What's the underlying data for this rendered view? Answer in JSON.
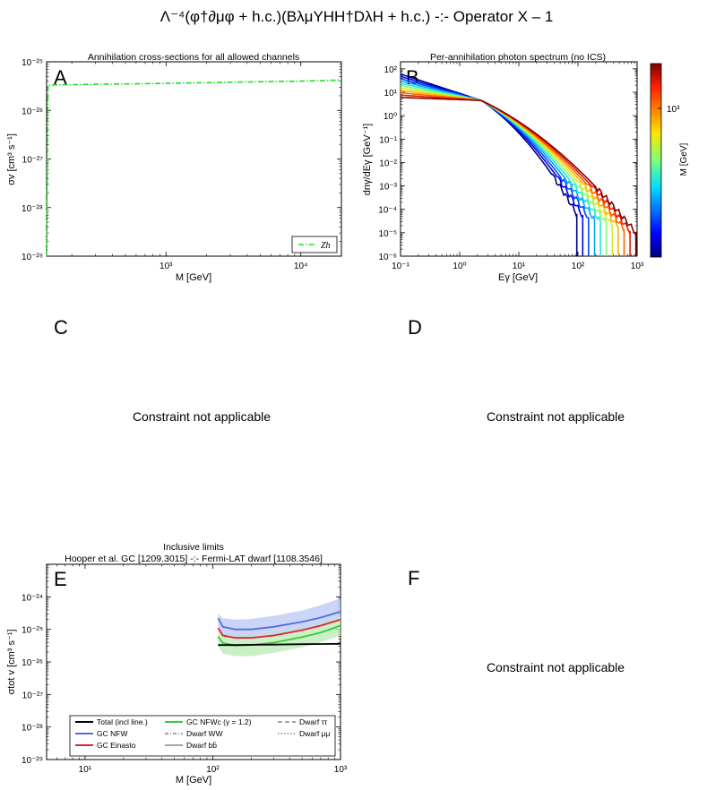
{
  "figure_title": "Λ⁻⁴(φ†∂μφ + h.c.)(BλμYHH†DλH + h.c.) -:- Operator X – 1",
  "na_text": "Constraint not applicable",
  "colors": {
    "zh_line": "#22dd22",
    "total": "#000000",
    "nfw": "#4f6fe0",
    "einasto": "#e0203a",
    "nfwc": "#33cc33",
    "nfw_band": "#b9c7f2",
    "nfwc_band": "#b9ebb4",
    "gray_dwarf": "#888888"
  },
  "chart_data": [
    {
      "panel": "A",
      "type": "line",
      "title": "Annihilation cross-sections for all allowed channels",
      "xlabel": "M [GeV]",
      "ylabel": "σv [cm³ s⁻¹]",
      "xscale": "log",
      "yscale": "log",
      "xlim": [
        130,
        20000
      ],
      "ylim": [
        1e-29,
        1e-25
      ],
      "x_ticks": [
        "10³",
        "10⁴"
      ],
      "y_ticks": [
        "10⁻²⁹",
        "10⁻²⁸",
        "10⁻²⁷",
        "10⁻²⁶",
        "10⁻²⁵"
      ],
      "legend": {
        "placement": "bottom-right",
        "entries": [
          "Zh"
        ]
      },
      "series": [
        {
          "name": "Zh",
          "style": "dash-dot",
          "x": [
            130,
            133,
            150,
            300,
            1000,
            3000,
            10000,
            20000
          ],
          "y": [
            1e-29,
            3.3e-26,
            3.35e-26,
            3.45e-26,
            3.6e-26,
            3.8e-26,
            4e-26,
            4.2e-26
          ]
        }
      ]
    },
    {
      "panel": "B",
      "type": "line",
      "title": "Per-annihilation photon spectrum (no ICS)",
      "xlabel": "Eγ [GeV]",
      "ylabel": "dnγ/dEγ [GeV⁻¹]",
      "xscale": "log",
      "yscale": "log",
      "xlim": [
        0.1,
        1000
      ],
      "ylim": [
        1e-06,
        200
      ],
      "x_ticks": [
        "10⁻¹",
        "10⁰",
        "10¹",
        "10²",
        "10³"
      ],
      "y_ticks": [
        "10⁻⁶",
        "10⁻⁵",
        "10⁻⁴",
        "10⁻³",
        "10⁻²",
        "10⁻¹",
        "10⁰",
        "10¹",
        "10²"
      ],
      "colorbar": {
        "label": "M [GeV]",
        "tick": "10³",
        "mass_range": [
          100,
          1000
        ]
      },
      "masses": [
        100,
        126,
        158,
        200,
        251,
        316,
        398,
        501,
        631,
        794,
        1000
      ],
      "spectrum_model": {
        "low_E_value_at_M100": 60,
        "low_E_value_at_M1000": 6,
        "pivot_E": 2.3,
        "pivot_value": 4.5
      }
    },
    {
      "panel": "E",
      "type": "line",
      "title": "Inclusive limits",
      "subtitle": "Hooper et al. GC [1209.3015] -:- Fermi-LAT dwarf [1108.3546]",
      "xlabel": "M [GeV]",
      "ylabel": "σtot v [cm³ s⁻¹]",
      "xscale": "log",
      "yscale": "log",
      "xlim": [
        5,
        1000
      ],
      "ylim": [
        1e-29,
        1e-23
      ],
      "x_ticks": [
        "10¹",
        "10²",
        "10³"
      ],
      "y_ticks": [
        "10⁻²⁹",
        "10⁻²⁸",
        "10⁻²⁷",
        "10⁻²⁶",
        "10⁻²⁵",
        "10⁻²⁴"
      ],
      "legend": {
        "placement": "bottom",
        "entries": [
          "Total (incl line.)",
          "GC NFW",
          "GC Einasto",
          "GC NFWc (γ = 1.2)",
          "Dwarf WW",
          "Dwarf bb̄",
          "Dwarf ττ",
          "Dwarf μμ"
        ]
      },
      "series": [
        {
          "name": "Total (incl line.)",
          "x": [
            110,
            150,
            200,
            300,
            500,
            700,
            1000
          ],
          "y": [
            3.3e-26,
            3.3e-26,
            3.35e-26,
            3.4e-26,
            3.5e-26,
            3.55e-26,
            3.6e-26
          ]
        },
        {
          "name": "GC NFW",
          "x": [
            110,
            120,
            150,
            200,
            300,
            500,
            700,
            1000
          ],
          "y": [
            2.2e-25,
            1.2e-25,
            1e-25,
            1e-25,
            1.2e-25,
            1.7e-25,
            2.3e-25,
            3.5e-25
          ],
          "band_low": [
            1.2e-25,
            6e-26,
            5e-26,
            5e-26,
            6e-26,
            9e-26,
            1.2e-25,
            1.8e-25
          ],
          "band_high": [
            3e-25,
            2.2e-25,
            2e-25,
            2.1e-25,
            2.6e-25,
            3.8e-25,
            5.5e-25,
            9e-25
          ]
        },
        {
          "name": "GC Einasto",
          "x": [
            110,
            120,
            150,
            200,
            300,
            500,
            700,
            1000
          ],
          "y": [
            1.1e-25,
            6.5e-26,
            5.5e-26,
            5.5e-26,
            6.5e-26,
            9.5e-26,
            1.3e-25,
            2e-25
          ]
        },
        {
          "name": "GC NFWc (γ = 1.2)",
          "x": [
            110,
            120,
            150,
            200,
            300,
            500,
            700,
            1000
          ],
          "y": [
            6e-26,
            3.8e-26,
            3.2e-26,
            3.3e-26,
            3.9e-26,
            5.8e-26,
            8e-26,
            1.3e-25
          ],
          "band_low": [
            3e-26,
            1.8e-26,
            1.5e-26,
            1.5e-26,
            1.9e-26,
            2.8e-26,
            4e-26,
            6.5e-26
          ],
          "band_high": [
            9e-26,
            7e-26,
            6e-26,
            6.2e-26,
            7.5e-26,
            1.1e-25,
            1.5e-25,
            2.5e-25
          ]
        }
      ]
    }
  ]
}
